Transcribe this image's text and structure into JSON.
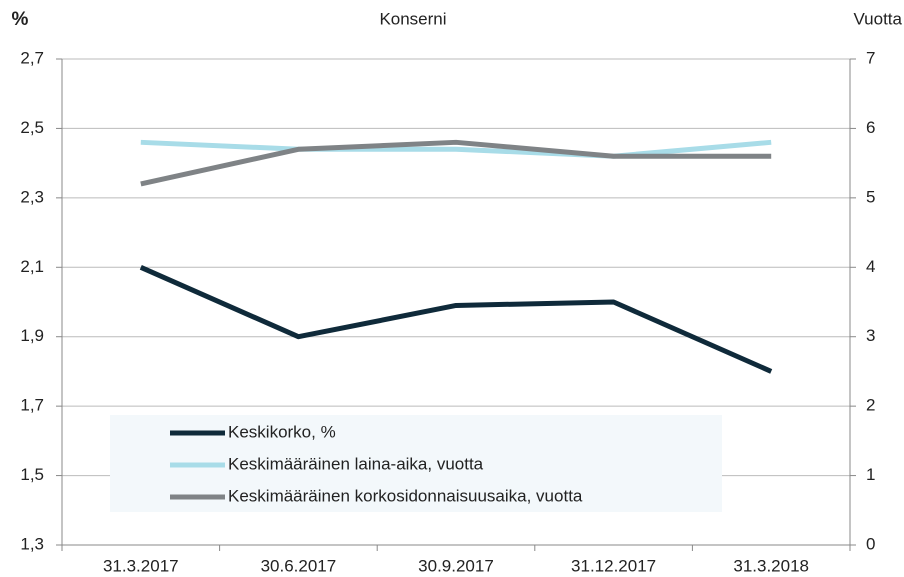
{
  "chart_data": {
    "type": "line",
    "title": "Konserni",
    "y_label": "%",
    "y2_label": "Vuotta",
    "categories": [
      "31.3.2017",
      "30.6.2017",
      "30.9.2017",
      "31.12.2017",
      "31.3.2018"
    ],
    "series": [
      {
        "name": "Keskikorko, %",
        "color": "#0f2a3a",
        "values": [
          2.1,
          1.9,
          1.99,
          2.0,
          1.8
        ]
      },
      {
        "name": "Keskimääräinen laina-aika, vuotta",
        "color": "#a8dce8",
        "axis": "y2",
        "values": [
          5.8,
          5.7,
          5.7,
          5.6,
          5.8
        ]
      },
      {
        "name": "Keskimääräinen korkosidonnaisuusaika, vuotta",
        "color": "#7f8386",
        "axis": "y2",
        "values": [
          5.2,
          5.7,
          5.8,
          5.6,
          5.6
        ]
      }
    ],
    "ylim": [
      1.3,
      2.7
    ],
    "yticks": [
      {
        "value": 1.3,
        "label": "1,3"
      },
      {
        "value": 1.5,
        "label": "1,5"
      },
      {
        "value": 1.7,
        "label": "1,7"
      },
      {
        "value": 1.9,
        "label": "1,9"
      },
      {
        "value": 2.1,
        "label": "2,1"
      },
      {
        "value": 2.3,
        "label": "2,3"
      },
      {
        "value": 2.5,
        "label": "2,5"
      },
      {
        "value": 2.7,
        "label": "2,7"
      }
    ],
    "y2lim": [
      0,
      7
    ],
    "y2ticks": [
      0,
      1,
      2,
      3,
      4,
      5,
      6,
      7
    ],
    "grid": true,
    "legend": "lower left"
  }
}
